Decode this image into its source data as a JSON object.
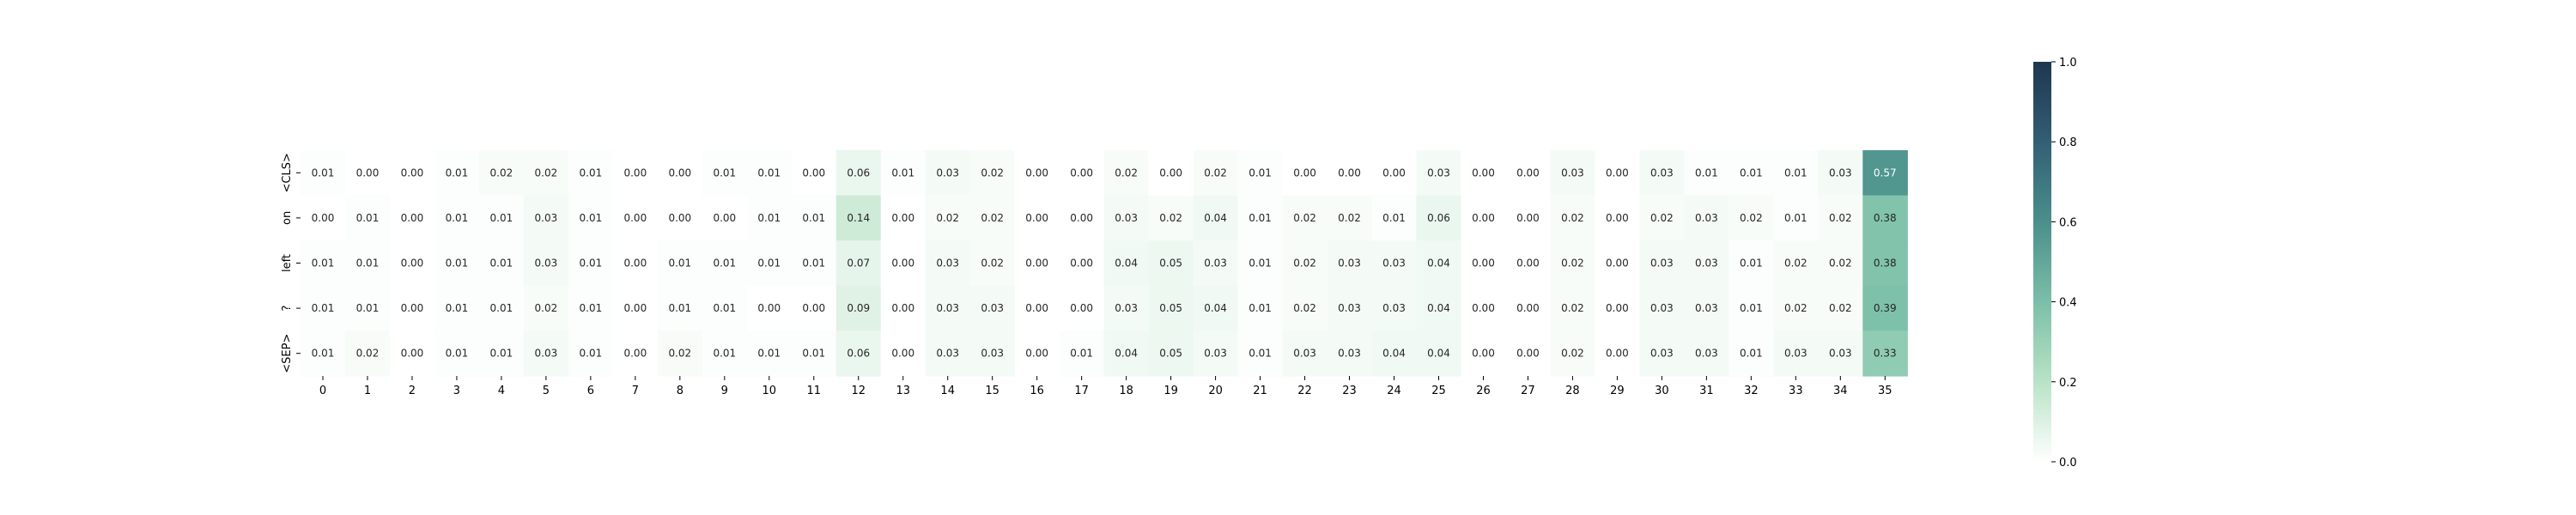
{
  "chart_data": {
    "type": "heatmap",
    "title": "",
    "xlabel": "",
    "ylabel": "",
    "x_labels": [
      "0",
      "1",
      "2",
      "3",
      "4",
      "5",
      "6",
      "7",
      "8",
      "9",
      "10",
      "11",
      "12",
      "13",
      "14",
      "15",
      "16",
      "17",
      "18",
      "19",
      "20",
      "21",
      "22",
      "23",
      "24",
      "25",
      "26",
      "27",
      "28",
      "29",
      "30",
      "31",
      "32",
      "33",
      "34",
      "35"
    ],
    "y_labels": [
      "<CLS>",
      "on",
      "left",
      "?",
      "<SEP>"
    ],
    "values": [
      [
        0.01,
        0.0,
        0.0,
        0.01,
        0.02,
        0.02,
        0.01,
        0.0,
        0.0,
        0.01,
        0.01,
        0.0,
        0.06,
        0.01,
        0.03,
        0.02,
        0.0,
        0.0,
        0.02,
        0.0,
        0.02,
        0.01,
        0.0,
        0.0,
        0.0,
        0.03,
        0.0,
        0.0,
        0.03,
        0.0,
        0.03,
        0.01,
        0.01,
        0.01,
        0.03,
        0.57
      ],
      [
        0.0,
        0.01,
        0.0,
        0.01,
        0.01,
        0.03,
        0.01,
        0.0,
        0.0,
        0.0,
        0.01,
        0.01,
        0.14,
        0.0,
        0.02,
        0.02,
        0.0,
        0.0,
        0.03,
        0.02,
        0.04,
        0.01,
        0.02,
        0.02,
        0.01,
        0.06,
        0.0,
        0.0,
        0.02,
        0.0,
        0.02,
        0.03,
        0.02,
        0.01,
        0.02,
        0.38
      ],
      [
        0.01,
        0.01,
        0.0,
        0.01,
        0.01,
        0.03,
        0.01,
        0.0,
        0.01,
        0.01,
        0.01,
        0.01,
        0.07,
        0.0,
        0.03,
        0.02,
        0.0,
        0.0,
        0.04,
        0.05,
        0.03,
        0.01,
        0.02,
        0.03,
        0.03,
        0.04,
        0.0,
        0.0,
        0.02,
        0.0,
        0.03,
        0.03,
        0.01,
        0.02,
        0.02,
        0.38
      ],
      [
        0.01,
        0.01,
        0.0,
        0.01,
        0.01,
        0.02,
        0.01,
        0.0,
        0.01,
        0.01,
        0.0,
        0.0,
        0.09,
        0.0,
        0.03,
        0.03,
        0.0,
        0.0,
        0.03,
        0.05,
        0.04,
        0.01,
        0.02,
        0.03,
        0.03,
        0.04,
        0.0,
        0.0,
        0.02,
        0.0,
        0.03,
        0.03,
        0.01,
        0.02,
        0.02,
        0.39
      ],
      [
        0.01,
        0.02,
        0.0,
        0.01,
        0.01,
        0.03,
        0.01,
        0.0,
        0.02,
        0.01,
        0.01,
        0.01,
        0.06,
        0.0,
        0.03,
        0.03,
        0.0,
        0.01,
        0.04,
        0.05,
        0.03,
        0.01,
        0.03,
        0.03,
        0.04,
        0.04,
        0.0,
        0.0,
        0.02,
        0.0,
        0.03,
        0.03,
        0.01,
        0.03,
        0.03,
        0.33
      ]
    ],
    "value_format": "2 decimals",
    "color_range": [
      0.0,
      1.0
    ],
    "colormap": [
      "#ffffff",
      "#b8e3c6",
      "#7bbfa8",
      "#4a8f8b",
      "#325f74",
      "#1e3650"
    ],
    "colorbar_ticks": [
      "0.0",
      "0.2",
      "0.4",
      "0.6",
      "0.8",
      "1.0"
    ],
    "grid": false
  }
}
